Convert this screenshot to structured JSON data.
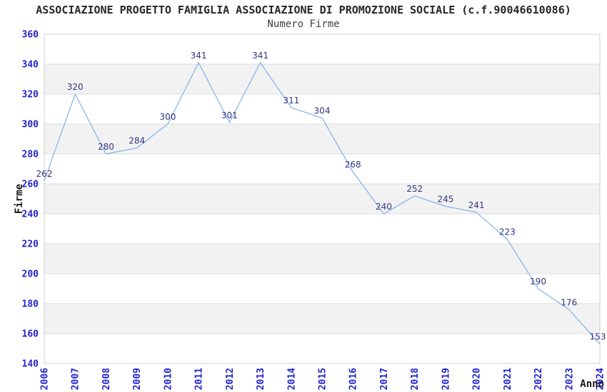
{
  "chart_data": {
    "type": "line",
    "title": "ASSOCIAZIONE PROGETTO FAMIGLIA ASSOCIAZIONE DI PROMOZIONE SOCIALE (c.f.90046610086)",
    "subtitle": "Numero Firme",
    "xlabel": "Anno",
    "ylabel": "Firme",
    "categories": [
      "2006",
      "2007",
      "2008",
      "2009",
      "2010",
      "2011",
      "2012",
      "2013",
      "2014",
      "2015",
      "2016",
      "2017",
      "2018",
      "2019",
      "2020",
      "2021",
      "2022",
      "2023",
      "2024"
    ],
    "values": [
      262,
      320,
      280,
      284,
      300,
      341,
      301,
      341,
      311,
      304,
      268,
      240,
      252,
      245,
      241,
      223,
      190,
      176,
      153
    ],
    "ylim": [
      140,
      360
    ],
    "ytick_step": 20,
    "legend": "none",
    "grid": "horizontal-gridlines-with-alternating-bands",
    "point_labels_shown": true,
    "colors": {
      "line": "#7fb2ec",
      "value_label": "#333380",
      "tick_label": "#2323cd",
      "band": "#f2f2f2",
      "gridline": "#dcdcdc",
      "frame": "#d0d0d0",
      "title": "#262626",
      "background": "#ffffff"
    }
  }
}
